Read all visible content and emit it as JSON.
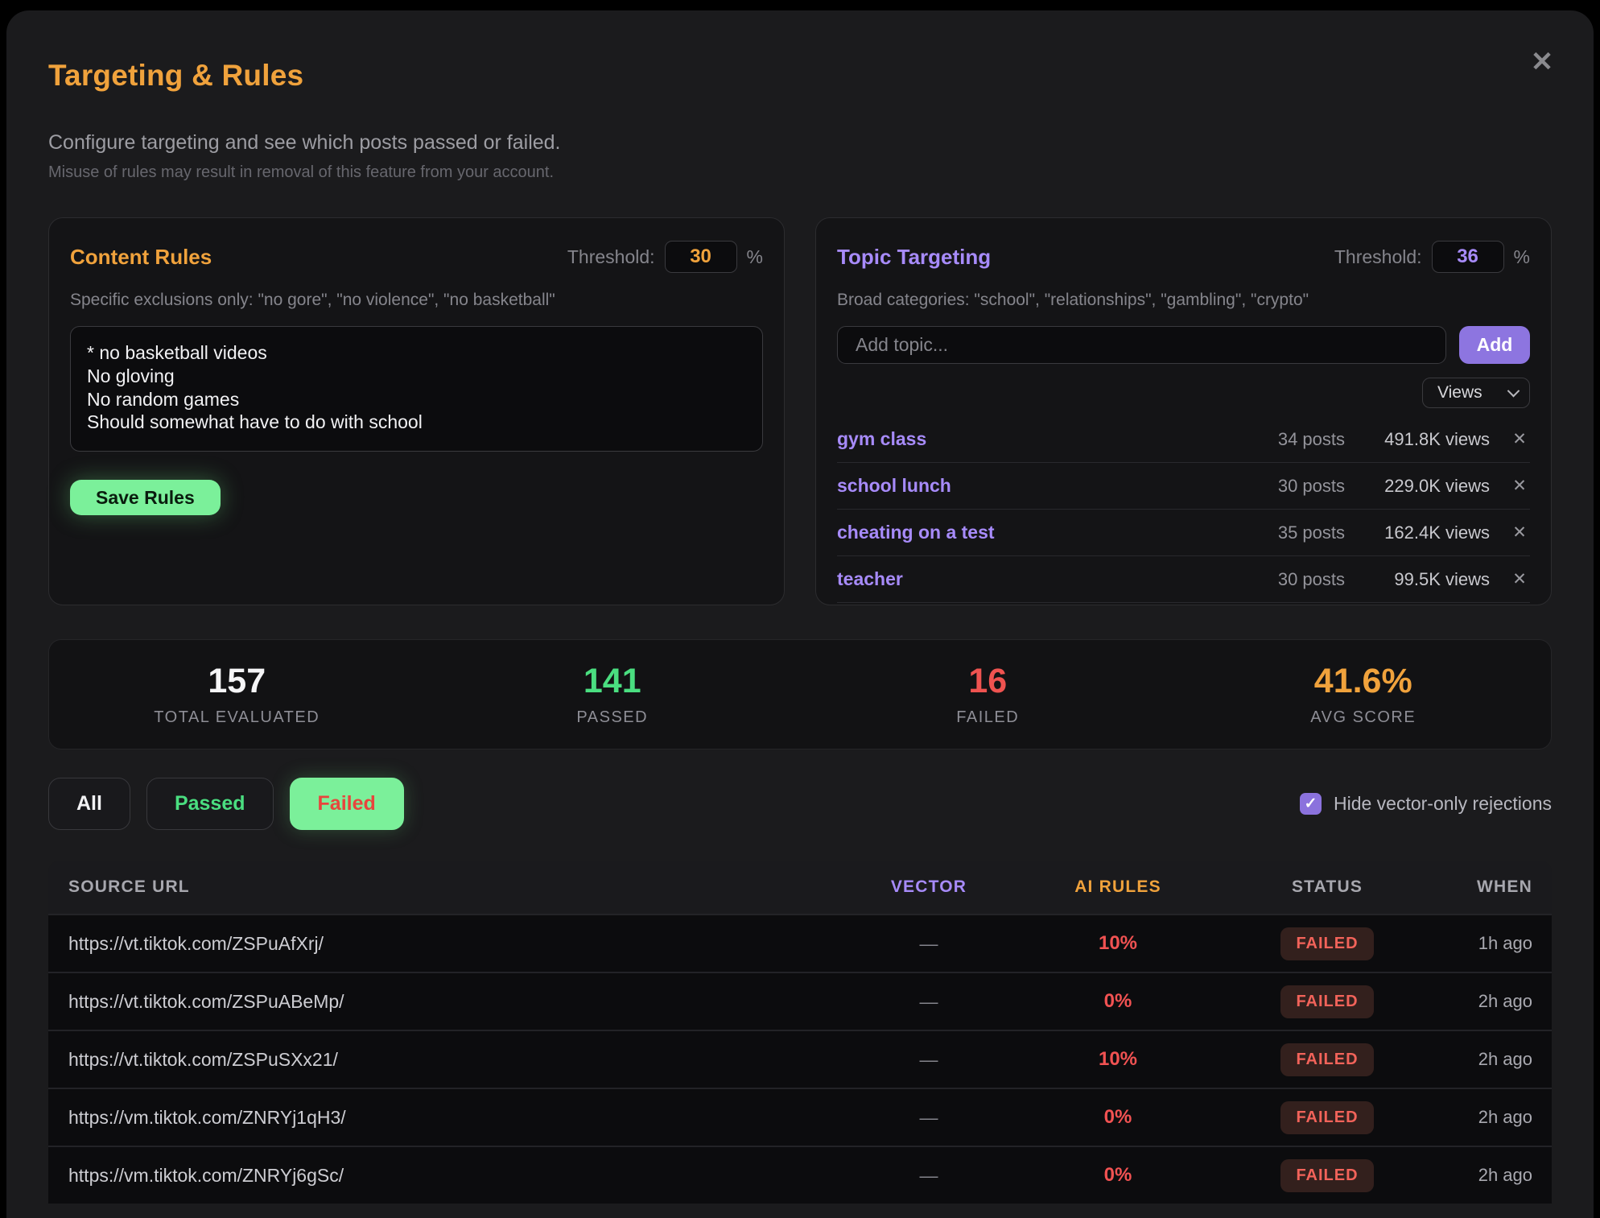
{
  "icons": {
    "close": "✕",
    "remove": "✕",
    "check": "✓"
  },
  "colors": {
    "accent_orange": "#f0a23c",
    "accent_purple": "#a78bfa",
    "button_purple": "#8d75e0",
    "accent_green": "#4ade80",
    "bright_green": "#7bf09a",
    "accent_red": "#ef5350"
  },
  "modal": {
    "title": "Targeting & Rules",
    "subtitle": "Configure targeting and see which posts passed or failed.",
    "warning": "Misuse of rules may result in removal of this feature from your account."
  },
  "content_rules": {
    "title": "Content Rules",
    "threshold_label": "Threshold:",
    "threshold_value": "30",
    "threshold_unit": "%",
    "hint": "Specific exclusions only: \"no gore\", \"no violence\", \"no basketball\"",
    "rules_text": "* no basketball videos\nNo gloving\nNo random games\nShould somewhat have to do with school",
    "save_label": "Save Rules"
  },
  "topic_targeting": {
    "title": "Topic Targeting",
    "threshold_label": "Threshold:",
    "threshold_value": "36",
    "threshold_unit": "%",
    "hint": "Broad categories: \"school\", \"relationships\", \"gambling\", \"crypto\"",
    "add_placeholder": "Add topic...",
    "add_label": "Add",
    "sort_selected": "Views",
    "topics": [
      {
        "name": "gym class",
        "posts": "34 posts",
        "views": "491.8K views"
      },
      {
        "name": "school lunch",
        "posts": "30 posts",
        "views": "229.0K views"
      },
      {
        "name": "cheating on a test",
        "posts": "35 posts",
        "views": "162.4K views"
      },
      {
        "name": "teacher",
        "posts": "30 posts",
        "views": "99.5K views"
      }
    ]
  },
  "stats": [
    {
      "value": "157",
      "label": "TOTAL EVALUATED",
      "color": "#f5f5f7"
    },
    {
      "value": "141",
      "label": "PASSED",
      "color": "#4ade80"
    },
    {
      "value": "16",
      "label": "FAILED",
      "color": "#ef5350"
    },
    {
      "value": "41.6%",
      "label": "AVG SCORE",
      "color": "#f0a23c"
    }
  ],
  "filters": {
    "all": "All",
    "passed": "Passed",
    "failed": "Failed",
    "active": "Failed",
    "hide_label": "Hide vector-only rejections",
    "hide_checked": true
  },
  "table": {
    "headers": [
      "SOURCE URL",
      "VECTOR",
      "AI RULES",
      "STATUS",
      "WHEN"
    ],
    "rows": [
      {
        "url": "https://vt.tiktok.com/ZSPuAfXrj/",
        "vector": "—",
        "ai_rules": "10%",
        "status": "FAILED",
        "when": "1h ago"
      },
      {
        "url": "https://vt.tiktok.com/ZSPuABeMp/",
        "vector": "—",
        "ai_rules": "0%",
        "status": "FAILED",
        "when": "2h ago"
      },
      {
        "url": "https://vt.tiktok.com/ZSPuSXx21/",
        "vector": "—",
        "ai_rules": "10%",
        "status": "FAILED",
        "when": "2h ago"
      },
      {
        "url": "https://vm.tiktok.com/ZNRYj1qH3/",
        "vector": "—",
        "ai_rules": "0%",
        "status": "FAILED",
        "when": "2h ago"
      },
      {
        "url": "https://vm.tiktok.com/ZNRYj6gSc/",
        "vector": "—",
        "ai_rules": "0%",
        "status": "FAILED",
        "when": "2h ago"
      }
    ]
  }
}
